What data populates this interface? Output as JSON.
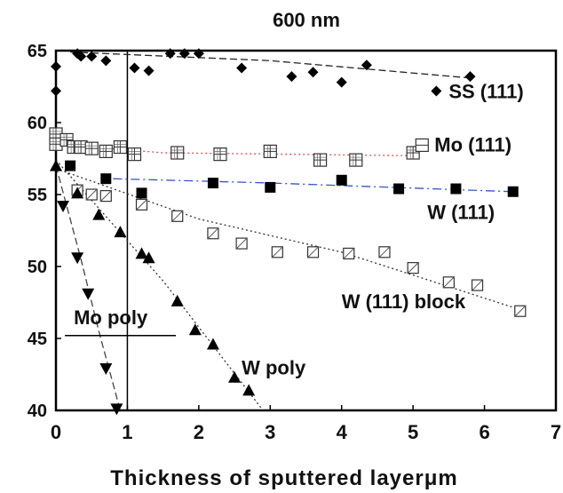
{
  "chart_data": {
    "type": "scatter",
    "title": "600 nm",
    "xlabel": "Thickness of sputtered layerμm",
    "ylabel": "",
    "xlim": [
      0,
      7
    ],
    "ylim": [
      40,
      65
    ],
    "xticks": [
      "0",
      "1",
      "2",
      "3",
      "4",
      "5",
      "6",
      "7"
    ],
    "yticks": [
      "40",
      "45",
      "50",
      "55",
      "60",
      "65"
    ],
    "reference_line_x": 1,
    "grid": false,
    "series": [
      {
        "name": "SS (111)",
        "marker": "diamond-filled",
        "line_color": "#222222",
        "line_style": "dash",
        "points": [
          [
            0,
            62.2
          ],
          [
            0,
            63.9
          ],
          [
            0.3,
            64.8
          ],
          [
            0.35,
            64.6
          ],
          [
            0.5,
            64.6
          ],
          [
            0.7,
            64.3
          ],
          [
            1.1,
            63.8
          ],
          [
            1.3,
            63.6
          ],
          [
            1.6,
            64.8
          ],
          [
            1.8,
            64.8
          ],
          [
            2,
            64.8
          ],
          [
            2.6,
            63.8
          ],
          [
            3.3,
            63.2
          ],
          [
            3.6,
            63.5
          ],
          [
            4,
            62.8
          ],
          [
            4.35,
            64
          ],
          [
            5.8,
            63.2
          ]
        ],
        "trend": [
          [
            0.2,
            64.9
          ],
          [
            3,
            64.3
          ],
          [
            5.8,
            63.1
          ]
        ],
        "label_pos": [
          5.5,
          61.7
        ]
      },
      {
        "name": "Mo (111)",
        "marker": "square-cross",
        "line_color": "#e05050",
        "line_style": "dot",
        "points": [
          [
            0,
            59.2
          ],
          [
            0,
            58.5
          ],
          [
            0.15,
            58.8
          ],
          [
            0.25,
            58.3
          ],
          [
            0.35,
            58.3
          ],
          [
            0.5,
            58.2
          ],
          [
            0.7,
            58
          ],
          [
            0.9,
            58.3
          ],
          [
            1.1,
            57.8
          ],
          [
            1.7,
            57.9
          ],
          [
            2.3,
            57.8
          ],
          [
            3,
            58
          ],
          [
            3.7,
            57.4
          ],
          [
            4.2,
            57.4
          ],
          [
            5,
            57.9
          ]
        ],
        "trend": [
          [
            0,
            59
          ],
          [
            0.5,
            58.3
          ],
          [
            1.5,
            57.9
          ],
          [
            5,
            57.7
          ]
        ],
        "label_pos": [
          5.3,
          58
        ]
      },
      {
        "name": "W (111)",
        "marker": "square-filled",
        "line_color": "#3355cc",
        "line_style": "dashdot",
        "points": [
          [
            0.2,
            57
          ],
          [
            0.7,
            56.1
          ],
          [
            1.2,
            55.1
          ],
          [
            2.2,
            55.8
          ],
          [
            3,
            55.5
          ],
          [
            4,
            56
          ],
          [
            4.8,
            55.4
          ],
          [
            5.6,
            55.4
          ],
          [
            6.4,
            55.2
          ]
        ],
        "trend": [
          [
            0.8,
            56.1
          ],
          [
            3,
            55.8
          ],
          [
            6.4,
            55.2
          ]
        ],
        "label_pos": [
          5.2,
          53.3
        ]
      },
      {
        "name": "W (111) block",
        "marker": "square-slash",
        "line_color": "#333333",
        "line_style": "dot",
        "points": [
          [
            0.3,
            55.3
          ],
          [
            0.5,
            55
          ],
          [
            0.7,
            54.9
          ],
          [
            1.2,
            54.3
          ],
          [
            1.7,
            53.5
          ],
          [
            2.2,
            52.3
          ],
          [
            2.6,
            51.6
          ],
          [
            3.1,
            51
          ],
          [
            3.6,
            51
          ],
          [
            4.1,
            50.9
          ],
          [
            4.6,
            51
          ],
          [
            5,
            49.9
          ],
          [
            5.5,
            48.9
          ],
          [
            5.9,
            48.7
          ],
          [
            6.5,
            46.9
          ]
        ],
        "trend": [
          [
            0,
            56.8
          ],
          [
            2,
            53.3
          ],
          [
            4,
            51
          ],
          [
            6.5,
            47
          ]
        ],
        "label_pos": [
          4,
          47.1
        ]
      },
      {
        "name": "Mo poly",
        "marker": "triangle-down-filled",
        "line_color": "#444444",
        "line_style": "dash",
        "points": [
          [
            0.1,
            54.2
          ],
          [
            0.3,
            50.6
          ],
          [
            0.45,
            48.1
          ],
          [
            0.7,
            42.9
          ],
          [
            0.85,
            40.1
          ]
        ],
        "trend": [
          [
            0,
            57
          ],
          [
            0.35,
            50.5
          ],
          [
            0.6,
            45.5
          ],
          [
            0.9,
            40
          ]
        ],
        "label_pos": [
          0.25,
          46
        ],
        "label_underline": true
      },
      {
        "name": "W poly",
        "marker": "triangle-up-filled",
        "line_color": "#333333",
        "line_style": "dot",
        "points": [
          [
            0,
            57
          ],
          [
            0.3,
            55.1
          ],
          [
            0.6,
            53.6
          ],
          [
            0.9,
            52.4
          ],
          [
            1.2,
            50.9
          ],
          [
            1.3,
            50.6
          ],
          [
            1.7,
            47.6
          ],
          [
            1.95,
            45.6
          ],
          [
            2.2,
            44.6
          ],
          [
            2.5,
            42.3
          ],
          [
            2.7,
            41.4
          ]
        ],
        "trend": [
          [
            0,
            57.4
          ],
          [
            1.5,
            49
          ],
          [
            2.9,
            40
          ]
        ],
        "label_pos": [
          2.6,
          42.5
        ]
      }
    ]
  }
}
